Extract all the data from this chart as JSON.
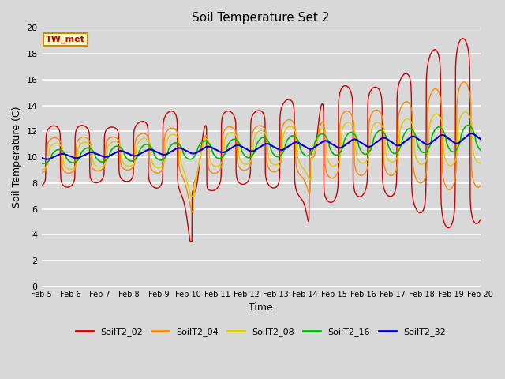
{
  "title": "Soil Temperature Set 2",
  "xlabel": "Time",
  "ylabel": "Soil Temperature (C)",
  "ylim": [
    0,
    20
  ],
  "yticks": [
    0,
    2,
    4,
    6,
    8,
    10,
    12,
    14,
    16,
    18,
    20
  ],
  "xtick_labels": [
    "Feb 5",
    "Feb 6",
    "Feb 7",
    "Feb 8",
    "Feb 9",
    "Feb 10",
    "Feb 11",
    "Feb 12",
    "Feb 13",
    "Feb 14",
    "Feb 15",
    "Feb 16",
    "Feb 17",
    "Feb 18",
    "Feb 19",
    "Feb 20"
  ],
  "series_colors": [
    "#cc0000",
    "#ff8800",
    "#ddcc00",
    "#00bb00",
    "#0000cc"
  ],
  "series_labels": [
    "SoilT2_02",
    "SoilT2_04",
    "SoilT2_08",
    "SoilT2_16",
    "SoilT2_32"
  ],
  "background_color": "#d8d8d8",
  "plot_bg_color": "#d8d8d8",
  "grid_color": "#ffffff",
  "annotation_text": "TW_met",
  "annotation_color": "#cc0000",
  "annotation_bg": "#ffffcc",
  "annotation_border": "#cc8800",
  "figsize": [
    6.4,
    4.8
  ],
  "dpi": 100
}
